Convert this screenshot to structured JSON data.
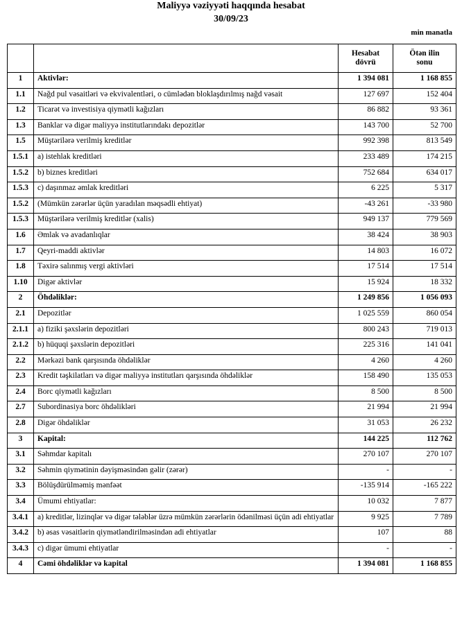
{
  "header": {
    "title": "Maliyyə vəziyyəti haqqında hesabat",
    "date": "30/09/23",
    "unit": "min manatla"
  },
  "table": {
    "columns": [
      "",
      "",
      "Hesabat dövrü",
      "Ötən ilin sonu"
    ],
    "rows": [
      [
        "1",
        "Aktivlər:",
        "1 394 081",
        "1 168 855"
      ],
      [
        "1.1",
        "Nağd pul vəsaitləri və  ekvivalentləri, o cümlədən bloklaşdırılmış nağd vəsait",
        "127 697",
        "152 404"
      ],
      [
        "1.2",
        "Ticarət və investisiya qiymətli kağızları",
        "86 882",
        "93 361"
      ],
      [
        "1.3",
        "Banklar və digər maliyyə institutlarındakı depozitlər",
        "143 700",
        "52 700"
      ],
      [
        "1.5",
        "Müştərilərə verilmiş kreditlər",
        "992 398",
        "813 549"
      ],
      [
        "1.5.1",
        "a) istehlak kreditləri",
        "233 489",
        "174 215"
      ],
      [
        "1.5.2",
        "b) biznes kreditləri",
        "752 684",
        "634 017"
      ],
      [
        "1.5.3",
        "c) daşınmaz əmlak kreditləri",
        "6 225",
        "5 317"
      ],
      [
        "1.5.2",
        "(Mümkün zərərlər üçün yaradılan məqsədli ehtiyat)",
        "-43 261",
        "-33 980"
      ],
      [
        "1.5.3",
        "Müştərilərə verilmiş kreditlər (xalis)",
        "949 137",
        "779 569"
      ],
      [
        "1.6",
        "Əmlak və avadanlıqlar",
        "38 424",
        "38 903"
      ],
      [
        "1.7",
        "Qeyri-maddi aktivlər",
        "14 803",
        "16 072"
      ],
      [
        "1.8",
        "Təxirə salınmış vergi aktivləri",
        "17 514",
        "17 514"
      ],
      [
        "1.10",
        "Digər aktivlər",
        "15 924",
        "18 332"
      ],
      [
        "2",
        "Öhdəliklər:",
        "1 249 856",
        "1 056 093"
      ],
      [
        "2.1",
        "Depozitlər",
        "1 025 559",
        "860 054"
      ],
      [
        "2.1.1",
        "a) fiziki şəxslərin depozitləri",
        "800 243",
        "719 013"
      ],
      [
        "2.1.2",
        "b) hüquqi şəxslərin depozitləri",
        "225 316",
        "141 041"
      ],
      [
        "2.2",
        "Mərkəzi bank qarşısında öhdəliklər",
        "4 260",
        "4 260"
      ],
      [
        "2.3",
        "Kredit təşkilatları və digər maliyyə institutları qarşısında öhdəliklər",
        "158 490",
        "135 053"
      ],
      [
        "2.4",
        "Borc qiymətli kağızları",
        "8 500",
        "8 500"
      ],
      [
        "2.7",
        "Subordinasiya borc öhdəlikləri",
        "21 994",
        "21 994"
      ],
      [
        "2.8",
        "Digər öhdəliklər",
        "31 053",
        "26 232"
      ],
      [
        "3",
        "Kapital:",
        "144 225",
        "112 762"
      ],
      [
        "3.1",
        "Səhmdar kapitalı",
        "270 107",
        "270 107"
      ],
      [
        "3.2",
        "Səhmin qiymətinin dəyişməsindən gəlir (zərər)",
        "-",
        "-"
      ],
      [
        "3.3",
        "Bölüşdürülməmiş mənfəət",
        "-135 914",
        "-165 222"
      ],
      [
        "3.4",
        "Ümumi ehtiyatlar:",
        "10 032",
        "7 877"
      ],
      [
        "3.4.1",
        "a) kreditlər, lizinqlər və digər tələblər üzrə mümkün zərərlərin ödənilməsi üçün adi ehtiyatlar",
        "9 925",
        "7 789"
      ],
      [
        "3.4.2",
        "b) əsas vəsaitlərin qiymətləndirilməsindən adi ehtiyatlar",
        "107",
        "88"
      ],
      [
        "3.4.3",
        "c) digər ümumi ehtiyatlar",
        "-",
        "-"
      ],
      [
        "4",
        "Cəmi öhdəliklər və kapital",
        "1 394 081",
        "1 168 855"
      ]
    ]
  }
}
